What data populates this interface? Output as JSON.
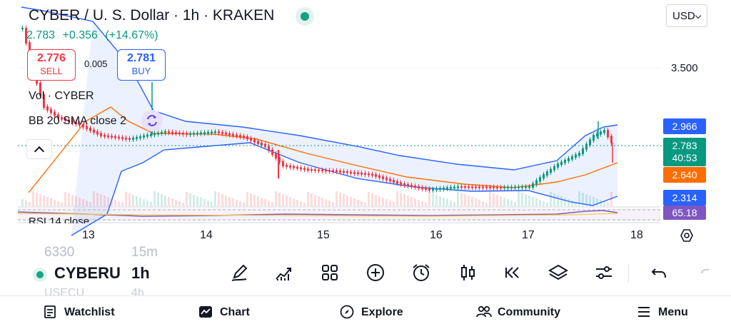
{
  "header": {
    "title": "CYBER / U. S. Dollar · 1h · KRAKEN",
    "last_price": "2.783",
    "change": "+0.356",
    "change_pct": "(+14.67%)",
    "currency": "USD"
  },
  "trade": {
    "sell_price": "2.776",
    "sell_label": "SELL",
    "spread": "0.005",
    "buy_price": "2.781",
    "buy_label": "BUY"
  },
  "indicators": {
    "volume_label": "Vol · CYBER",
    "bb_label": "BB 20 SMA close 2",
    "rsi_label": "RSI 14 close"
  },
  "price_axis": {
    "level_label": "3.500",
    "tags": {
      "bb_upper": "2.966",
      "current": "2.783",
      "countdown": "40:53",
      "bb_basis": "2.640",
      "bb_lower": "2.314",
      "rsi": "65.18"
    }
  },
  "time_axis": {
    "labels": [
      "13",
      "14",
      "15",
      "16",
      "17",
      "18"
    ]
  },
  "bottom_bar": {
    "symbol": "CYBERU",
    "timeframe": "1h",
    "overflow_prev_symbol": "6330",
    "overflow_prev_tf": "15m",
    "overflow_next_symbol": "USECU",
    "overflow_next_tf": "4h",
    "tools": [
      "pencil-icon",
      "chart-up-icon",
      "grid-icon",
      "plus-circle-icon",
      "alarm-icon",
      "candles-icon",
      "rewind-icon",
      "layers-icon",
      "sliders-icon",
      "undo-icon",
      "redo-icon"
    ]
  },
  "nav": {
    "items": [
      "Watchlist",
      "Chart",
      "Explore",
      "Community",
      "Menu"
    ]
  },
  "colors": {
    "up": "#089981",
    "down": "#f23645",
    "bb_band": "#2962ff",
    "bb_basis": "#ff6d00",
    "rsi": "#7e57c2"
  }
}
